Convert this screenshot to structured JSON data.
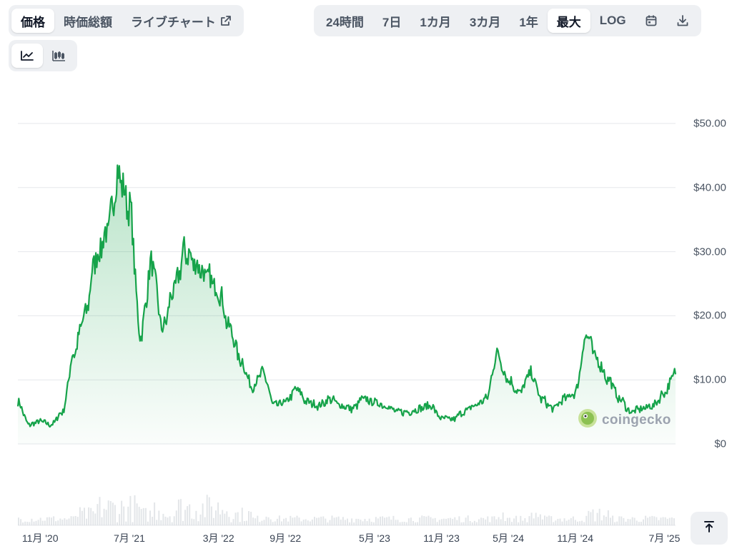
{
  "tabs": [
    {
      "label": "価格",
      "active": true
    },
    {
      "label": "時価総額",
      "active": false
    },
    {
      "label": "ライブチャート",
      "active": false,
      "icon": "external-link-icon"
    }
  ],
  "ranges": [
    {
      "label": "24時間",
      "active": false
    },
    {
      "label": "7日",
      "active": false
    },
    {
      "label": "1カ月",
      "active": false
    },
    {
      "label": "3カ月",
      "active": false
    },
    {
      "label": "1年",
      "active": false
    },
    {
      "label": "最大",
      "active": true
    },
    {
      "label": "LOG",
      "active": false
    }
  ],
  "range_icons": [
    "calendar-icon",
    "download-icon"
  ],
  "chart_types": [
    {
      "icon": "line-chart-icon",
      "active": true
    },
    {
      "icon": "candlestick-icon",
      "active": false
    }
  ],
  "watermark": "coingecko",
  "colors": {
    "line": "#16a34a",
    "fill": "#16a34a",
    "grid": "#e5e7eb",
    "volume": "#d1d5db",
    "button_bg": "#eef0f3"
  },
  "chart_data": {
    "type": "area",
    "series": [
      {
        "x": [
          "2020-09",
          "2020-10",
          "2020-11",
          "2020-12",
          "2021-01",
          "2021-02",
          "2021-03",
          "2021-04",
          "2021-05",
          "2021-06",
          "2021-07",
          "2021-08",
          "2021-09",
          "2021-10",
          "2021-11",
          "2021-12",
          "2022-01",
          "2022-02",
          "2022-03",
          "2022-04",
          "2022-05",
          "2022-06",
          "2022-07",
          "2022-08",
          "2022-09",
          "2022-10",
          "2022-11",
          "2022-12",
          "2023-01",
          "2023-02",
          "2023-03",
          "2023-04",
          "2023-05",
          "2023-06",
          "2023-07",
          "2023-08",
          "2023-09",
          "2023-10",
          "2023-11",
          "2023-12",
          "2024-01",
          "2024-02",
          "2024-03",
          "2024-04",
          "2024-05",
          "2024-06",
          "2024-07",
          "2024-08",
          "2024-09",
          "2024-10",
          "2024-11",
          "2024-12",
          "2025-01",
          "2025-02",
          "2025-03",
          "2025-04",
          "2025-05",
          "2025-06",
          "2025-07",
          "2025-08"
        ],
        "values": [
          6.5,
          3,
          3.5,
          3,
          5,
          14,
          20,
          29,
          33,
          42,
          37,
          17,
          28,
          18,
          24,
          30,
          28,
          26,
          24,
          18,
          13,
          9,
          11,
          6,
          6.5,
          8.5,
          6.5,
          6,
          7,
          6,
          5.5,
          7,
          6.5,
          6,
          5,
          5,
          5.5,
          6,
          4,
          3.8,
          5,
          6,
          7,
          14,
          10,
          8,
          11,
          7,
          5.5,
          7,
          8,
          17,
          13,
          10,
          7,
          5,
          5.5,
          6,
          8,
          11
        ]
      }
    ],
    "y_ticks": [
      "$50.00",
      "$40.00",
      "$30.00",
      "$20.00",
      "$10.00",
      "$0"
    ],
    "x_ticks": [
      "11月 '20",
      "7月 '21",
      "3月 '22",
      "9月 '22",
      "5月 '23",
      "11月 '23",
      "5月 '24",
      "11月 '24",
      "7月 '25"
    ],
    "ylim": [
      0,
      50
    ],
    "grid": true
  }
}
